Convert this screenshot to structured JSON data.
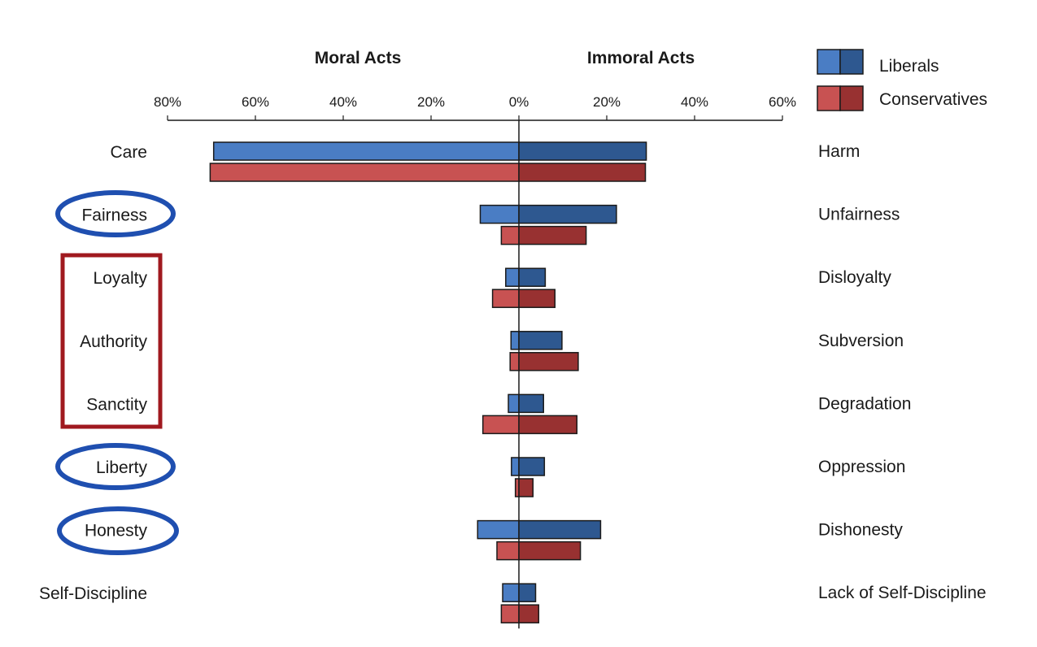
{
  "chart_data": {
    "type": "bar",
    "orientation": "horizontal",
    "left_title": "Moral Acts",
    "right_title": "Immoral Acts",
    "ticks": [
      "80%",
      "60%",
      "40%",
      "20%",
      "0%",
      "20%",
      "40%",
      "60%"
    ],
    "xlim": {
      "moral_max": 80,
      "immoral_max": 60
    },
    "moral_categories": [
      "Care",
      "Fairness",
      "Loyalty",
      "Authority",
      "Sanctity",
      "Liberty",
      "Honesty",
      "Self-Discipline"
    ],
    "immoral_categories": [
      "Harm",
      "Unfairness",
      "Disloyalty",
      "Subversion",
      "Degradation",
      "Oppression",
      "Dishonesty",
      "Lack of Self-Discipline"
    ],
    "series": [
      {
        "name": "Liberals",
        "moral": [
          69.5,
          8.8,
          3.0,
          1.8,
          2.4,
          1.7,
          9.4,
          3.7
        ],
        "immoral": [
          29.0,
          22.2,
          6.0,
          9.8,
          5.6,
          5.8,
          18.6,
          3.8
        ]
      },
      {
        "name": "Conservatives",
        "moral": [
          70.3,
          4.0,
          6.0,
          2.0,
          8.2,
          0.8,
          5.0,
          4.0
        ],
        "immoral": [
          28.8,
          15.3,
          8.2,
          13.5,
          13.2,
          3.2,
          14.0,
          4.5
        ]
      }
    ],
    "colors": {
      "liberal_moral": "#4a7dc4",
      "liberal_immoral": "#2e5890",
      "conservative_moral": "#c85252",
      "conservative_immoral": "#983131",
      "circle": "#1f4fb0",
      "box": "#a0191f",
      "outline": "#1a1a1a"
    },
    "annotations": {
      "circled": [
        "Fairness",
        "Liberty",
        "Honesty"
      ],
      "boxed": [
        "Loyalty",
        "Authority",
        "Sanctity"
      ]
    },
    "legend_position": "top-right",
    "grid": false
  }
}
